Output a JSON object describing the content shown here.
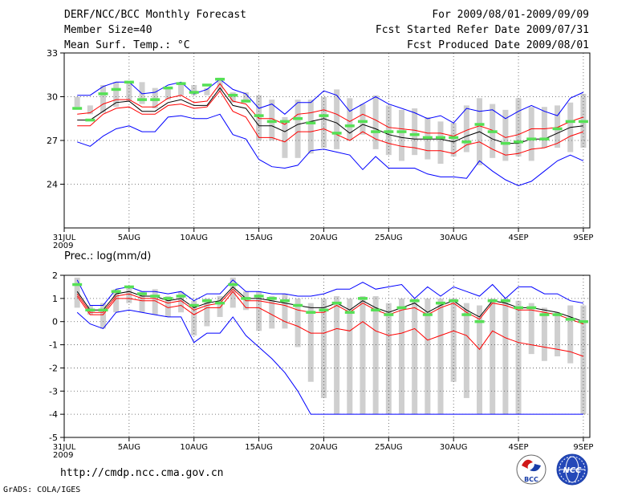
{
  "header": {
    "left": [
      "DERF/NCC/BCC Monthly Forecast",
      "Member Size=40",
      "Mean Surf. Temp.: °C"
    ],
    "right": [
      "For 2009/08/01-2009/09/09",
      "Fcst Started Refer Date 2009/07/31",
      "Fcst Produced Date 2009/08/01"
    ]
  },
  "footer": {
    "url": "http://cmdp.ncc.cma.gov.cn",
    "credit": "GrADS: COLA/IGES",
    "logo_bcc": "BCC",
    "logo_ncc": "NCC"
  },
  "chart_data": [
    {
      "type": "line",
      "title": "Mean Surf. Temp.: °C",
      "x_tick_labels": [
        "31JUL\n2009",
        "5AUG",
        "10AUG",
        "15AUG",
        "20AUG",
        "25AUG",
        "30AUG",
        "4SEP",
        "9SEP"
      ],
      "x_tick_days": [
        0,
        5,
        10,
        15,
        20,
        25,
        30,
        35,
        40
      ],
      "ylim": [
        21,
        33
      ],
      "yticks": [
        24,
        27,
        30,
        33
      ],
      "grid": true,
      "days": [
        1,
        2,
        3,
        4,
        5,
        6,
        7,
        8,
        9,
        10,
        11,
        12,
        13,
        14,
        15,
        16,
        17,
        18,
        19,
        20,
        21,
        22,
        23,
        24,
        25,
        26,
        27,
        28,
        29,
        30,
        31,
        32,
        33,
        34,
        35,
        36,
        37,
        38,
        39,
        40
      ],
      "series": [
        {
          "name": "max",
          "color": "#0000ff",
          "values": [
            30.1,
            30.1,
            30.7,
            31.0,
            31.0,
            30.2,
            30.3,
            30.8,
            31.0,
            30.2,
            30.5,
            31.2,
            30.5,
            30.2,
            29.2,
            29.5,
            28.8,
            29.6,
            29.6,
            30.4,
            30.1,
            29.0,
            29.5,
            30.0,
            29.5,
            29.2,
            28.9,
            28.5,
            28.7,
            28.2,
            29.2,
            29.0,
            29.1,
            28.5,
            29.0,
            29.4,
            29.0,
            28.7,
            29.9,
            30.3
          ]
        },
        {
          "name": "upper",
          "color": "#ff0000",
          "values": [
            28.8,
            28.9,
            29.5,
            29.8,
            29.8,
            29.3,
            29.3,
            29.9,
            30.1,
            29.6,
            29.7,
            30.9,
            29.7,
            29.5,
            28.5,
            28.5,
            28.1,
            28.8,
            28.9,
            29.1,
            28.8,
            28.3,
            28.8,
            28.4,
            27.9,
            27.8,
            27.7,
            27.5,
            27.5,
            27.3,
            27.7,
            28.0,
            27.7,
            27.2,
            27.4,
            27.8,
            27.8,
            27.9,
            28.3,
            28.6
          ]
        },
        {
          "name": "mean",
          "color": "#000000",
          "values": [
            28.4,
            28.4,
            29.0,
            29.6,
            29.7,
            29.0,
            29.0,
            29.6,
            29.8,
            29.4,
            29.4,
            30.6,
            29.4,
            29.2,
            28.0,
            28.0,
            27.6,
            28.1,
            28.3,
            28.5,
            28.2,
            27.5,
            28.1,
            27.8,
            27.4,
            27.2,
            27.1,
            27.1,
            27.1,
            26.9,
            27.3,
            27.6,
            27.1,
            26.8,
            26.8,
            27.1,
            27.1,
            27.5,
            27.9,
            28.0
          ]
        },
        {
          "name": "lower",
          "color": "#ff0000",
          "values": [
            28.0,
            28.0,
            28.8,
            29.2,
            29.3,
            28.8,
            28.8,
            29.4,
            29.5,
            29.2,
            29.3,
            30.4,
            29.0,
            28.6,
            27.2,
            27.2,
            26.9,
            27.6,
            27.6,
            27.8,
            27.4,
            27.0,
            27.6,
            27.1,
            26.8,
            26.6,
            26.5,
            26.3,
            26.3,
            26.1,
            26.7,
            26.9,
            26.4,
            26.0,
            26.1,
            26.4,
            26.5,
            26.8,
            27.3,
            27.6
          ]
        },
        {
          "name": "min",
          "color": "#0000ff",
          "values": [
            26.9,
            26.6,
            27.3,
            27.8,
            28.0,
            27.6,
            27.6,
            28.6,
            28.7,
            28.5,
            28.5,
            28.8,
            27.4,
            27.1,
            25.7,
            25.2,
            25.1,
            25.3,
            26.3,
            26.4,
            26.2,
            26.0,
            25.0,
            25.9,
            25.1,
            25.1,
            25.1,
            24.7,
            24.5,
            24.5,
            24.4,
            25.6,
            24.9,
            24.3,
            23.9,
            24.2,
            24.9,
            25.6,
            26.0,
            25.6
          ]
        }
      ],
      "bars": [
        [
          29.3,
          30.0
        ],
        [
          28.8,
          29.4
        ],
        [
          28.9,
          30.8
        ],
        [
          29.3,
          31.0
        ],
        [
          29.7,
          31.0
        ],
        [
          29.5,
          31.0
        ],
        [
          29.2,
          30.6
        ],
        [
          29.8,
          30.6
        ],
        [
          30.1,
          31.0
        ],
        [
          30.1,
          30.8
        ],
        [
          30.1,
          30.6
        ],
        [
          30.4,
          31.3
        ],
        [
          29.6,
          30.3
        ],
        [
          29.6,
          30.3
        ],
        [
          27.0,
          30.1
        ],
        [
          27.0,
          29.8
        ],
        [
          25.8,
          28.6
        ],
        [
          25.8,
          29.8
        ],
        [
          26.1,
          29.8
        ],
        [
          26.5,
          30.0
        ],
        [
          26.4,
          30.5
        ],
        [
          27.0,
          29.9
        ],
        [
          27.4,
          29.5
        ],
        [
          26.4,
          30.1
        ],
        [
          26.0,
          29.4
        ],
        [
          25.6,
          29.1
        ],
        [
          26.0,
          29.2
        ],
        [
          25.7,
          28.6
        ],
        [
          25.4,
          28.3
        ],
        [
          25.9,
          28.2
        ],
        [
          26.2,
          29.4
        ],
        [
          25.3,
          29.9
        ],
        [
          25.8,
          29.5
        ],
        [
          25.6,
          29.1
        ],
        [
          25.9,
          29.9
        ],
        [
          25.6,
          29.3
        ],
        [
          26.5,
          29.3
        ],
        [
          26.5,
          29.4
        ],
        [
          26.2,
          29.6
        ],
        [
          26.5,
          30.2
        ]
      ],
      "obs": [
        29.2,
        28.4,
        30.2,
        30.5,
        31.0,
        29.8,
        29.8,
        30.6,
        30.9,
        30.3,
        30.8,
        31.2,
        30.1,
        29.7,
        28.7,
        28.3,
        28.3,
        28.5,
        28.2,
        28.7,
        27.5,
        28.0,
        28.3,
        27.6,
        27.6,
        27.6,
        27.4,
        27.2,
        27.2,
        27.2,
        26.9,
        28.1,
        27.6,
        26.8,
        26.9,
        27.1,
        27.1,
        27.8,
        28.3,
        28.3
      ]
    },
    {
      "type": "line",
      "title": "Prec.: log(mm/d)",
      "x_tick_labels": [
        "31JUL\n2009",
        "5AUG",
        "10AUG",
        "15AUG",
        "20AUG",
        "25AUG",
        "30AUG",
        "4SEP",
        "9SEP"
      ],
      "x_tick_days": [
        0,
        5,
        10,
        15,
        20,
        25,
        30,
        35,
        40
      ],
      "ylim": [
        -5,
        2
      ],
      "yticks": [
        -5,
        -4,
        -3,
        -2,
        -1,
        0,
        1,
        2
      ],
      "grid": true,
      "days": [
        1,
        2,
        3,
        4,
        5,
        6,
        7,
        8,
        9,
        10,
        11,
        12,
        13,
        14,
        15,
        16,
        17,
        18,
        19,
        20,
        21,
        22,
        23,
        24,
        25,
        26,
        27,
        28,
        29,
        30,
        31,
        32,
        33,
        34,
        35,
        36,
        37,
        38,
        39,
        40
      ],
      "series": [
        {
          "name": "max",
          "color": "#0000ff",
          "values": [
            1.8,
            0.7,
            0.7,
            1.4,
            1.5,
            1.3,
            1.3,
            1.2,
            1.3,
            0.9,
            1.2,
            1.2,
            1.8,
            1.3,
            1.3,
            1.2,
            1.2,
            1.1,
            1.1,
            1.2,
            1.4,
            1.4,
            1.7,
            1.4,
            1.5,
            1.6,
            1.0,
            1.5,
            1.1,
            1.5,
            1.3,
            1.1,
            1.6,
            1.0,
            1.5,
            1.5,
            1.2,
            1.2,
            0.9,
            0.8
          ]
        },
        {
          "name": "mean",
          "color": "#000000",
          "values": [
            1.3,
            0.5,
            0.5,
            1.2,
            1.3,
            1.1,
            1.1,
            0.9,
            1.0,
            0.6,
            0.8,
            0.9,
            1.5,
            1.0,
            1.0,
            0.9,
            0.8,
            0.7,
            0.6,
            0.6,
            0.8,
            0.5,
            0.9,
            0.6,
            0.4,
            0.6,
            0.8,
            0.4,
            0.7,
            0.9,
            0.5,
            0.2,
            0.9,
            0.8,
            0.6,
            0.6,
            0.5,
            0.4,
            0.2,
            0.0
          ]
        },
        {
          "name": "upper",
          "color": "#ff0000",
          "values": [
            1.2,
            0.4,
            0.4,
            1.1,
            1.2,
            1.0,
            1.0,
            0.8,
            0.9,
            0.5,
            0.7,
            0.8,
            1.4,
            0.9,
            0.9,
            0.8,
            0.7,
            0.5,
            0.4,
            0.4,
            0.7,
            0.4,
            0.8,
            0.5,
            0.3,
            0.5,
            0.6,
            0.3,
            0.6,
            0.8,
            0.4,
            0.1,
            0.8,
            0.7,
            0.5,
            0.5,
            0.4,
            0.3,
            0.1,
            -0.1
          ]
        },
        {
          "name": "lower",
          "color": "#ff0000",
          "values": [
            1.1,
            0.3,
            0.3,
            1.0,
            1.0,
            0.9,
            0.9,
            0.6,
            0.7,
            0.3,
            0.6,
            0.6,
            1.3,
            0.6,
            0.6,
            0.3,
            0.0,
            -0.2,
            -0.5,
            -0.5,
            -0.3,
            -0.4,
            0.0,
            -0.4,
            -0.6,
            -0.5,
            -0.3,
            -0.8,
            -0.6,
            -0.4,
            -0.6,
            -1.2,
            -0.4,
            -0.7,
            -0.9,
            -1.0,
            -1.1,
            -1.2,
            -1.3,
            -1.5
          ]
        },
        {
          "name": "min",
          "color": "#0000ff",
          "values": [
            0.4,
            -0.1,
            -0.3,
            0.4,
            0.5,
            0.4,
            0.3,
            0.2,
            0.2,
            -0.9,
            -0.5,
            -0.5,
            0.2,
            -0.6,
            -1.1,
            -1.6,
            -2.2,
            -3.0,
            -4.0,
            -4.0,
            -4.0,
            -4.0,
            -4.0,
            -4.0,
            -4.0,
            -4.0,
            -4.0,
            -4.0,
            -4.0,
            -4.0,
            -4.0,
            -4.0,
            -4.0,
            -4.0,
            -4.0,
            -4.0,
            -4.0,
            -4.0,
            -4.0,
            -4.0
          ]
        }
      ],
      "bars": [
        [
          0.6,
          1.9
        ],
        [
          0.3,
          0.7
        ],
        [
          -0.3,
          0.8
        ],
        [
          0.4,
          1.4
        ],
        [
          0.8,
          1.5
        ],
        [
          0.4,
          1.3
        ],
        [
          0.3,
          1.4
        ],
        [
          0.2,
          1.1
        ],
        [
          0.4,
          1.3
        ],
        [
          -0.6,
          0.9
        ],
        [
          -0.2,
          1.0
        ],
        [
          0.2,
          1.1
        ],
        [
          0.6,
          1.9
        ],
        [
          0.5,
          1.3
        ],
        [
          -0.4,
          1.3
        ],
        [
          -0.3,
          1.1
        ],
        [
          -0.3,
          1.2
        ],
        [
          -1.1,
          1.0
        ],
        [
          -2.6,
          0.8
        ],
        [
          -3.3,
          1.0
        ],
        [
          -4.0,
          1.1
        ],
        [
          -4.0,
          1.0
        ],
        [
          -4.0,
          1.1
        ],
        [
          -4.0,
          1.1
        ],
        [
          -4.0,
          0.8
        ],
        [
          -4.0,
          1.0
        ],
        [
          -4.0,
          1.0
        ],
        [
          -4.0,
          1.0
        ],
        [
          -4.0,
          1.0
        ],
        [
          -2.6,
          1.0
        ],
        [
          -3.3,
          0.8
        ],
        [
          -4.0,
          0.7
        ],
        [
          -4.0,
          1.0
        ],
        [
          -4.0,
          1.0
        ],
        [
          -4.0,
          0.9
        ],
        [
          -1.4,
          0.8
        ],
        [
          -1.7,
          0.6
        ],
        [
          -1.5,
          0.4
        ],
        [
          -1.8,
          0.7
        ],
        [
          -4.0,
          0.7
        ]
      ],
      "obs": [
        1.6,
        0.5,
        0.5,
        1.3,
        1.5,
        1.2,
        1.1,
        1.0,
        1.1,
        0.7,
        0.9,
        0.8,
        1.6,
        1.0,
        1.1,
        1.0,
        0.9,
        0.7,
        0.4,
        0.5,
        0.8,
        0.4,
        1.0,
        0.5,
        0.3,
        0.6,
        0.9,
        0.3,
        0.8,
        0.9,
        0.3,
        0.0,
        0.9,
        0.9,
        0.6,
        0.6,
        0.3,
        0.3,
        0.1,
        0.0
      ]
    }
  ]
}
